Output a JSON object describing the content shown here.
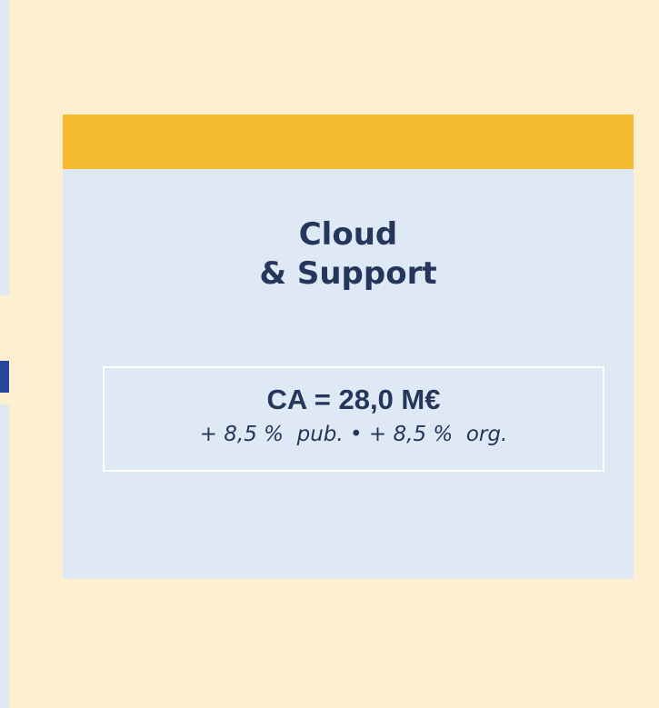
{
  "card": {
    "title_lines": [
      "Cloud",
      "& Support"
    ],
    "metric": "CA = 28,0 M€",
    "detail": "+ 8,5 %  pub. • + 8,5 %  org."
  }
}
